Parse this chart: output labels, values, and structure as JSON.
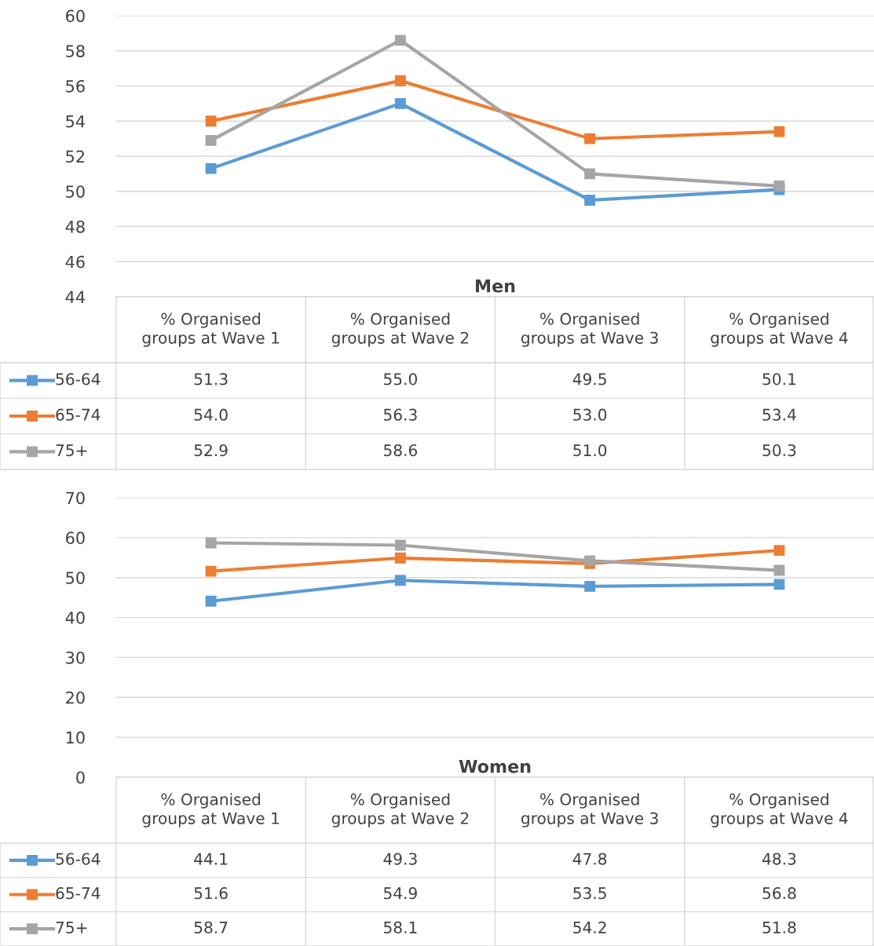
{
  "chart_data": [
    {
      "type": "line",
      "title": "Men",
      "categories": [
        "% Organised\ngroups at Wave 1",
        "% Organised\ngroups at Wave 2",
        "% Organised\ngroups at Wave 3",
        "% Organised\ngroups at Wave 4"
      ],
      "series": [
        {
          "name": "56-64",
          "color": "#5b9bd5",
          "values": [
            51.3,
            55.0,
            49.5,
            50.1
          ],
          "value_labels": [
            "51.3",
            "55.0",
            "49.5",
            "50.1"
          ]
        },
        {
          "name": "65-74",
          "color": "#ed7d31",
          "values": [
            54.0,
            56.3,
            53.0,
            53.4
          ],
          "value_labels": [
            "54.0",
            "56.3",
            "53.0",
            "53.4"
          ]
        },
        {
          "name": "75+",
          "color": "#a5a5a5",
          "values": [
            52.9,
            58.6,
            51.0,
            50.3
          ],
          "value_labels": [
            "52.9",
            "58.6",
            "51.0",
            "50.3"
          ]
        }
      ],
      "ylim": [
        44,
        60
      ],
      "yticks": [
        44,
        46,
        48,
        50,
        52,
        54,
        56,
        58,
        60
      ],
      "grid": "y",
      "marker": "square",
      "line_style": "solid",
      "legend": "bottom left"
    },
    {
      "type": "line",
      "title": "Women",
      "categories": [
        "% Organised\ngroups at Wave 1",
        "% Organised\ngroups at Wave 2",
        "% Organised\ngroups at Wave 3",
        "% Organised\ngroups at Wave 4"
      ],
      "series": [
        {
          "name": "56-64",
          "color": "#5b9bd5",
          "values": [
            44.1,
            49.3,
            47.8,
            48.3
          ],
          "value_labels": [
            "44.1",
            "49.3",
            "47.8",
            "48.3"
          ]
        },
        {
          "name": "65-74",
          "color": "#ed7d31",
          "values": [
            51.6,
            54.9,
            53.5,
            56.8
          ],
          "value_labels": [
            "51.6",
            "54.9",
            "53.5",
            "56.8"
          ]
        },
        {
          "name": "75+",
          "color": "#a5a5a5",
          "values": [
            58.7,
            58.1,
            54.2,
            51.8
          ],
          "value_labels": [
            "58.7",
            "58.1",
            "54.2",
            "51.8"
          ]
        }
      ],
      "ylim": [
        0,
        70
      ],
      "yticks": [
        0,
        10,
        20,
        30,
        40,
        50,
        60,
        70
      ],
      "grid": "y",
      "marker": "square",
      "line_style": "solid",
      "legend": "bottom left"
    }
  ]
}
